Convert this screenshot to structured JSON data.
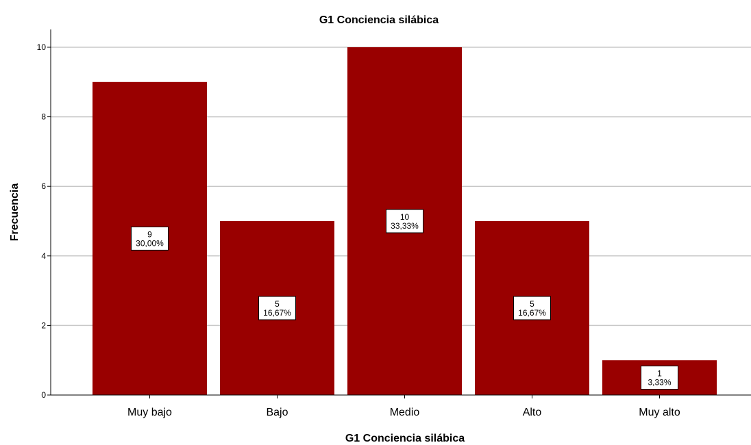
{
  "chart_data": {
    "type": "bar",
    "title": "G1 Conciencia silábica",
    "xlabel": "G1 Conciencia silábica",
    "ylabel": "Frecuencia",
    "categories": [
      "Muy bajo",
      "Bajo",
      "Medio",
      "Alto",
      "Muy alto"
    ],
    "values": [
      9,
      5,
      10,
      5,
      1
    ],
    "percent_labels": [
      "30,00%",
      "16,67%",
      "33,33%",
      "16,67%",
      "3,33%"
    ],
    "yticks": [
      0,
      2,
      4,
      6,
      8,
      10
    ],
    "ylim": [
      0,
      10.5
    ],
    "grid": true,
    "bar_color": "#990000",
    "grid_color": "#c8c8c8"
  }
}
